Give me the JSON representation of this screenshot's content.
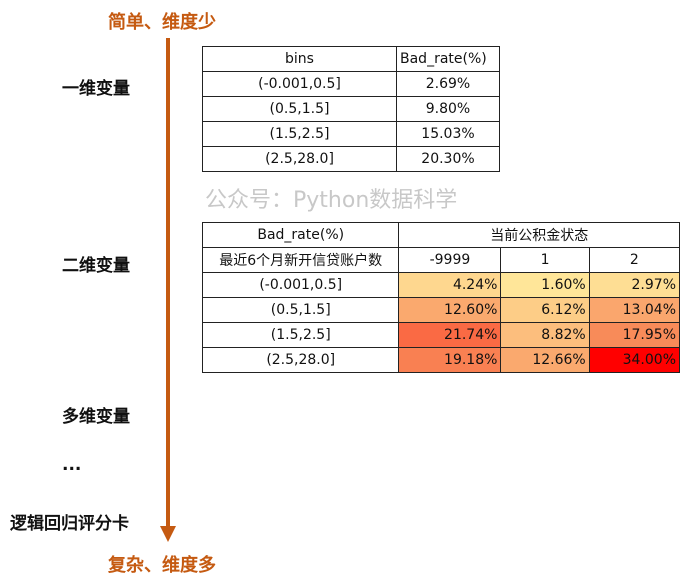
{
  "top_label": "简单、维度少",
  "bottom_label": "复杂、维度多",
  "levels": [
    "一维变量",
    "二维变量",
    "多维变量",
    "...",
    "逻辑回归评分卡"
  ],
  "watermark": "公众号：Python数据科学",
  "table1": {
    "header": [
      "bins",
      "Bad_rate(%)"
    ],
    "rows": [
      [
        "(-0.001,0.5]",
        "2.69%"
      ],
      [
        "(0.5,1.5]",
        "9.80%"
      ],
      [
        "(1.5,2.5]",
        "15.03%"
      ],
      [
        "(2.5,28.0]",
        "20.30%"
      ]
    ]
  },
  "table2": {
    "header": [
      "Bad_rate(%)",
      "当前公积金状态"
    ],
    "subheader": [
      "最近6个月新开信贷账户数",
      "-9999",
      "1",
      "2"
    ],
    "rows": [
      [
        "(-0.001,0.5]",
        "4.24%",
        "1.60%",
        "2.97%"
      ],
      [
        "(0.5,1.5]",
        "12.60%",
        "6.12%",
        "13.04%"
      ],
      [
        "(1.5,2.5]",
        "21.74%",
        "8.82%",
        "17.95%"
      ],
      [
        "(2.5,28.0]",
        "19.18%",
        "12.66%",
        "34.00%"
      ]
    ]
  }
}
